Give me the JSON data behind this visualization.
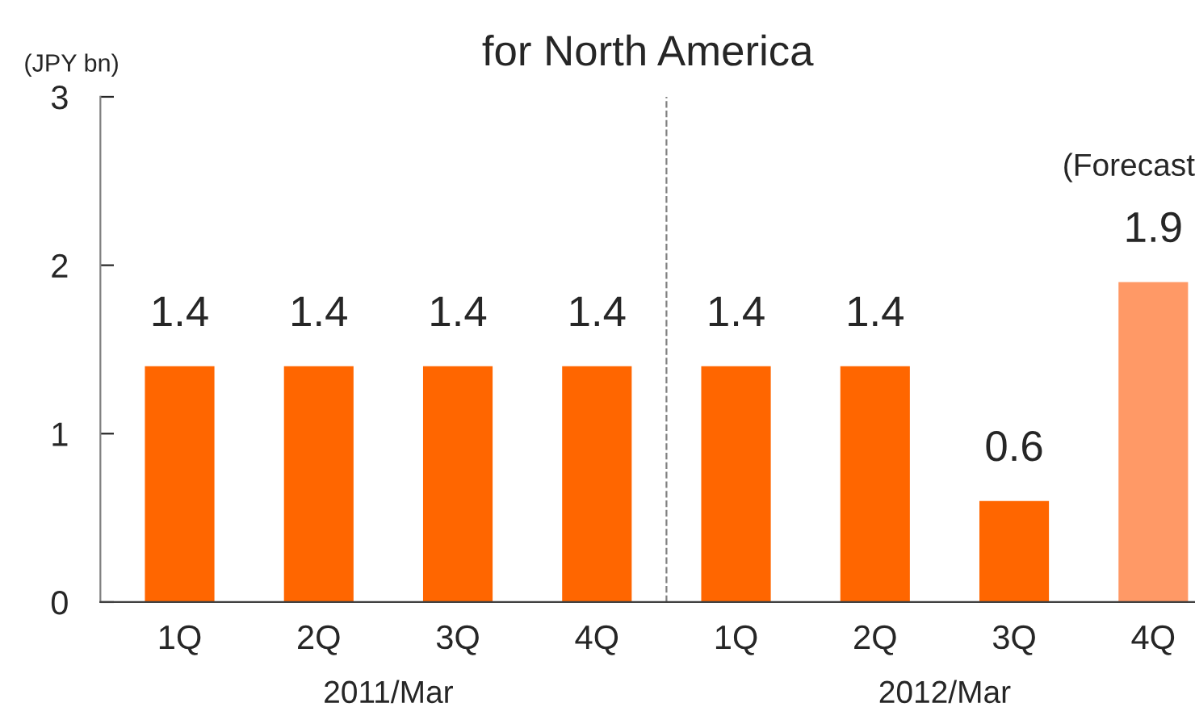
{
  "chart_data": {
    "type": "bar",
    "title": "for North America",
    "ylabel": "(JPY bn)",
    "categories": [
      "1Q",
      "2Q",
      "3Q",
      "4Q",
      "1Q",
      "2Q",
      "3Q",
      "4Q"
    ],
    "values": [
      1.4,
      1.4,
      1.4,
      1.4,
      1.4,
      1.4,
      0.6,
      1.9
    ],
    "colors": [
      "#ff6600",
      "#ff6600",
      "#ff6600",
      "#ff6600",
      "#ff6600",
      "#ff6600",
      "#ff6600",
      "#ff9966"
    ],
    "ylim": [
      0,
      3
    ],
    "yticks": [
      0,
      1,
      2,
      3
    ],
    "grid": false,
    "data_labels": true,
    "annotations": [
      "(Forecast",
      "2011/Mar",
      "2012/Mar"
    ]
  }
}
